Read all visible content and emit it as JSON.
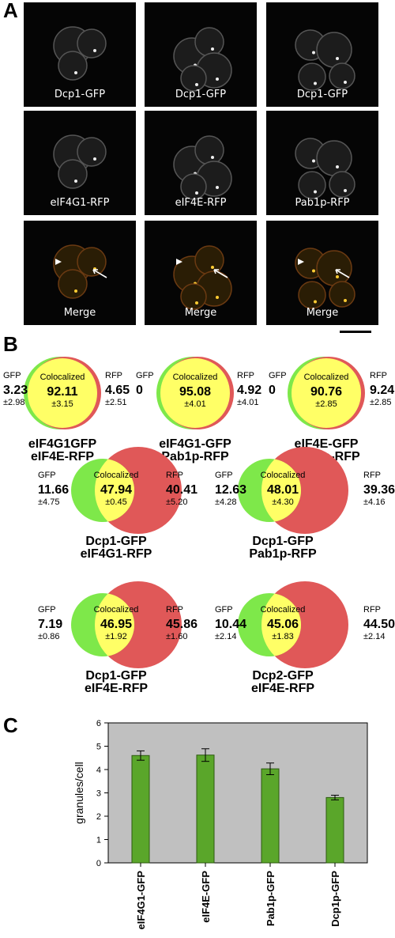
{
  "panel_a": {
    "letter": "A",
    "rows": [
      [
        "Dcp1-GFP",
        "Dcp1-GFP",
        "Dcp1-GFP"
      ],
      [
        "eIF4G1-RFP",
        "eIF4E-RFP",
        "Pab1p-RFP"
      ],
      [
        "Merge",
        "Merge",
        "Merge"
      ]
    ]
  },
  "panel_b": {
    "letter": "B",
    "vennA": [
      {
        "gfp_label": "GFP",
        "gfp": "3.23",
        "gfp_sd": "±2.98",
        "center_label": "Colocalized",
        "center": "92.11",
        "center_sd": "±3.15",
        "rfp_label": "RFP",
        "rfp": "4.65",
        "rfp_sd": "±2.51",
        "title1": "eIF4G1GFP",
        "title2": "eIF4E-RFP"
      },
      {
        "gfp_label": "GFP",
        "gfp": "0",
        "center_label": "Colocalized",
        "center": "95.08",
        "center_sd": "±4.01",
        "rfp_label": "RFP",
        "rfp": "4.92",
        "rfp_sd": "±4.01",
        "title1": "eIF4G1-GFP",
        "title2": "Pab1p-RFP"
      },
      {
        "gfp_label": "GFP",
        "gfp": "0",
        "center_label": "Colocalized",
        "center": "90.76",
        "center_sd": "±2.85",
        "rfp_label": "RFP",
        "rfp": "9.24",
        "rfp_sd": "±2.85",
        "title1": "eIF4E-GFP",
        "title2": "Pab1p-RFP"
      }
    ],
    "vennB": [
      {
        "gfp_label": "GFP",
        "gfp": "11.66",
        "gfp_sd": "±4.75",
        "center_label": "Colocalized",
        "center": "47.94",
        "center_sd": "±0.45",
        "rfp_label": "RFP",
        "rfp": "40.41",
        "rfp_sd": "±5.20",
        "title1": "Dcp1-GFP",
        "title2": "eIF4G1-RFP"
      },
      {
        "gfp_label": "GFP",
        "gfp": "12.63",
        "gfp_sd": "±4.28",
        "center_label": "Colocalized",
        "center": "48.01",
        "center_sd": "±4.30",
        "rfp_label": "RFP",
        "rfp": "39.36",
        "rfp_sd": "±4.16",
        "title1": "Dcp1-GFP",
        "title2": "Pab1p-RFP"
      },
      {
        "gfp_label": "GFP",
        "gfp": "7.19",
        "gfp_sd": "±0.86",
        "center_label": "Colocalized",
        "center": "46.95",
        "center_sd": "±1.92",
        "rfp_label": "RFP",
        "rfp": "45.86",
        "rfp_sd": "±1.60",
        "title1": "Dcp1-GFP",
        "title2": "eIF4E-RFP"
      },
      {
        "gfp_label": "GFP",
        "gfp": "10.44",
        "gfp_sd": "±2.14",
        "center_label": "Colocalized",
        "center": "45.06",
        "center_sd": "±1.83",
        "rfp_label": "RFP",
        "rfp": "44.50",
        "rfp_sd": "±2.14",
        "title1": "Dcp2-GFP",
        "title2": "eIF4E-RFP"
      }
    ],
    "colors": {
      "green": "#7ee84a",
      "yellow": "#ffff66",
      "red": "#e05858"
    }
  },
  "panel_c": {
    "letter": "C"
  },
  "chart_data": {
    "type": "bar",
    "categories": [
      "eIF4G1-GFP",
      "eIF4E-GFP",
      "Pab1p-GFP",
      "Dcp1p-GFP"
    ],
    "values": [
      4.6,
      4.62,
      4.03,
      2.8
    ],
    "errors": [
      0.2,
      0.27,
      0.25,
      0.1
    ],
    "ylabel": "granules/cell",
    "ylim": [
      0,
      6
    ],
    "yticks": [
      "0",
      "1",
      "2",
      "3",
      "4",
      "5",
      "6"
    ],
    "bar_color": "#5aa62a",
    "plot_bg": "#c0c0c0"
  }
}
